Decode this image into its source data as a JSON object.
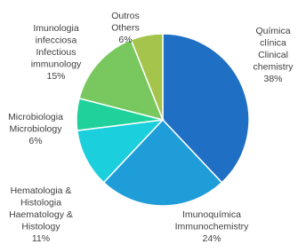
{
  "chart_data": {
    "type": "pie",
    "categories": [
      [
        "Química",
        "clínica",
        "Clinical",
        "chemistry"
      ],
      [
        "Imunoquímica",
        "Immunochemistry"
      ],
      [
        "Hematologia &",
        "Histologia",
        "Haematology &",
        "Histology"
      ],
      [
        "Microbiologia",
        "Microbiology"
      ],
      [
        "Imunologia",
        "infecciosa",
        "Infectious",
        "immunology"
      ],
      [
        "Outros",
        "Others"
      ]
    ],
    "values": [
      38,
      24,
      11,
      6,
      15,
      6
    ],
    "value_labels": [
      "38%",
      "24%",
      "11%",
      "6%",
      "15%",
      "6%"
    ],
    "colors": [
      "#1f6fc4",
      "#1f9dd8",
      "#1ccfdc",
      "#20d19b",
      "#78c85f",
      "#a5c44c"
    ]
  }
}
